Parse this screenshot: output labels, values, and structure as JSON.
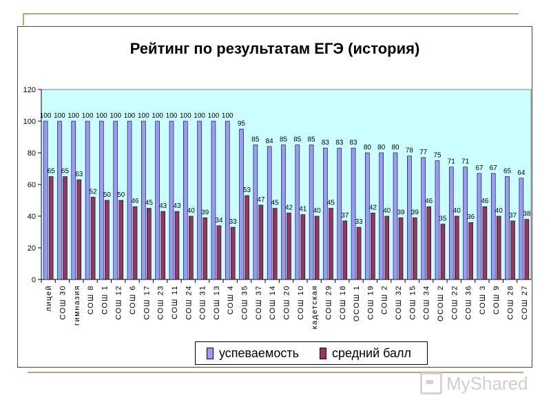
{
  "slide": {
    "watermark_text": "MyShared"
  },
  "chart_data": {
    "type": "bar",
    "title": "Рейтинг по результатам ЕГЭ (история)",
    "xlabel": "",
    "ylabel": "",
    "ylim": [
      0,
      120
    ],
    "yticks": [
      0,
      20,
      40,
      60,
      80,
      100,
      120
    ],
    "grid": false,
    "legend_position": "bottom",
    "plot_background": "#ccffff",
    "categories": [
      "лицей",
      "СОШ 30",
      "гимназия",
      "СОШ 8",
      "СОШ 1",
      "СОШ 12",
      "СОШ 6",
      "СОШ 17",
      "СОШ 23",
      "СОШ 11",
      "СОШ 24",
      "СОШ 31",
      "СОШ 13",
      "СОШ 4",
      "СОШ 35",
      "СОШ 37",
      "СОШ 14",
      "СОШ 20",
      "СОШ 10",
      "кадетская",
      "СОШ 29",
      "СОШ 18",
      "ОСОШ 1",
      "СОШ 19",
      "СОШ 2",
      "СОШ 32",
      "СОШ 15",
      "СОШ 34",
      "ОСОШ 2",
      "СОШ 22",
      "СОШ 36",
      "СОШ 3",
      "СОШ 9",
      "СОШ 28",
      "СОШ 27"
    ],
    "series": [
      {
        "name": "успеваемость",
        "color": "#9999ff",
        "values": [
          100,
          100,
          100,
          100,
          100,
          100,
          100,
          100,
          100,
          100,
          100,
          100,
          100,
          100,
          95,
          85,
          84,
          85,
          85,
          85,
          83,
          83,
          83,
          80,
          80,
          80,
          78,
          77,
          75,
          71,
          71,
          67,
          67,
          65,
          64
        ]
      },
      {
        "name": "средний балл",
        "color": "#993366",
        "values": [
          65,
          65,
          63,
          52,
          50,
          50,
          46,
          45,
          43,
          43,
          40,
          39,
          34,
          33,
          53,
          47,
          45,
          42,
          41,
          40,
          45,
          37,
          33,
          42,
          40,
          39,
          39,
          46,
          35,
          40,
          36,
          46,
          40,
          37,
          38
        ]
      }
    ]
  }
}
